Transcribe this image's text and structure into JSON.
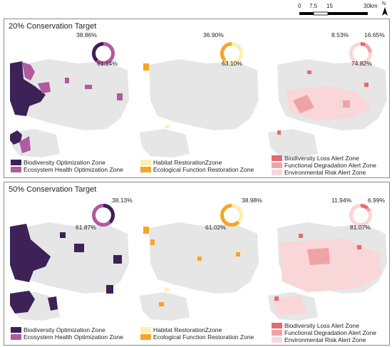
{
  "scale_bar": {
    "ticks": [
      "0",
      "7.5",
      "15",
      "30km"
    ]
  },
  "north_arrow": {
    "label": "N"
  },
  "colors": {
    "base": "#e6e6e6",
    "bio_opt": "#3c2257",
    "eco_health": "#b05aa0",
    "habitat": "#fbf0b2",
    "eco_func": "#f6a623",
    "bio_loss": "#e56b6f",
    "func_deg": "#f0a3a6",
    "env_risk": "#f9d6d8"
  },
  "panels": [
    {
      "title": "20% Conservation Target",
      "maps": [
        {
          "donut": {
            "values": [
              38.86,
              61.14
            ],
            "labels": [
              "38.86%",
              "61.14%"
            ]
          },
          "legend": [
            "Biodiversity Optimization Zone",
            "Ecosystem Health Optimization Zone"
          ]
        },
        {
          "donut": {
            "values": [
              36.9,
              63.1
            ],
            "labels": [
              "36.90%",
              "63.10%"
            ]
          },
          "legend": [
            "Habitat RestorationZzone",
            "Ecological Function Restoration Zone"
          ]
        },
        {
          "donut": {
            "values": [
              8.53,
              16.65,
              74.82
            ],
            "labels": [
              "8.53%",
              "16.65%",
              "74.82%"
            ]
          },
          "legend": [
            "Biodiversity Loss Alert Zone",
            "Functional Degradation Alert Zone",
            "Environmental Risk Alert Zone"
          ]
        }
      ]
    },
    {
      "title": "50% Conservation Target",
      "maps": [
        {
          "donut": {
            "values": [
              38.13,
              61.87
            ],
            "labels": [
              "38.13%",
              "61.87%"
            ]
          },
          "legend": [
            "Biodiversity Optimization Zone",
            "Ecosystem Health Optimization Zone"
          ]
        },
        {
          "donut": {
            "values": [
              38.98,
              61.02
            ],
            "labels": [
              "38.98%",
              "61.02%"
            ]
          },
          "legend": [
            "Habitat RestorationZzone",
            "Ecological Function Restoration Zone"
          ]
        },
        {
          "donut": {
            "values": [
              11.94,
              6.99,
              81.07
            ],
            "labels": [
              "11.94%",
              "6.99%",
              "81.07%"
            ]
          },
          "legend": [
            "Biodiversity Loss Alert Zone",
            "Functional Degradation Alert Zone",
            "Environmental Risk Alert Zone"
          ]
        }
      ]
    }
  ]
}
